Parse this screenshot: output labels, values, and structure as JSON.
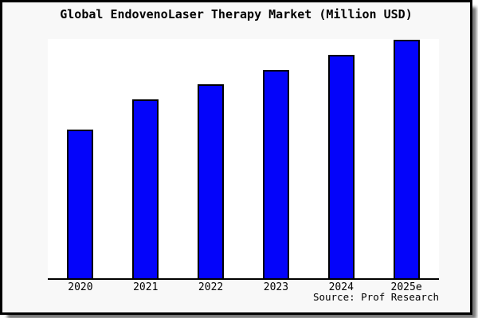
{
  "title": "Global EndovenoLaser Therapy Market (Million USD)",
  "source_text": "Source: Prof Research",
  "colors": {
    "card_background": "#f8f8f8",
    "plot_background": "#ffffff",
    "bar_fill": "#0404fa",
    "bar_edge": "#000000",
    "axis_line": "#000000",
    "frame_border": "#000000",
    "text": "#000000"
  },
  "chart_data": {
    "type": "bar",
    "title": "Global EndovenoLaser Therapy Market (Million USD)",
    "categories": [
      "2020",
      "2021",
      "2022",
      "2023",
      "2024",
      "2025e"
    ],
    "values": [
      62.5,
      74.9,
      81.3,
      87.4,
      93.6,
      100
    ],
    "value_note": "No y-axis scale is shown in the image; values are relative bar heights normalized to 2025e = 100",
    "units": "Million USD",
    "xlabel": "",
    "ylabel": "",
    "ylim": [
      0,
      100
    ],
    "grid": false,
    "legend": false,
    "source": "Source: Prof Research"
  }
}
